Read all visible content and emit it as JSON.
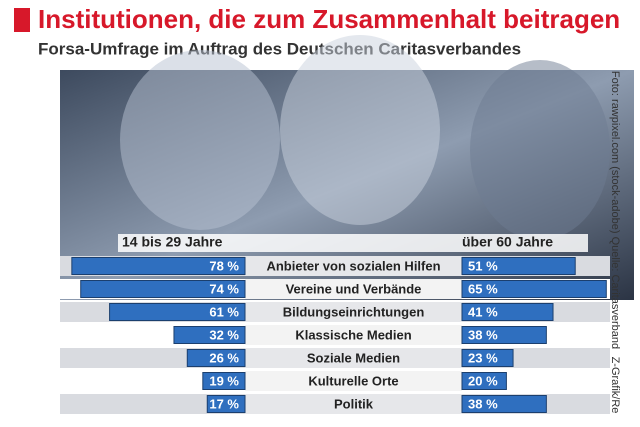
{
  "chart_data": {
    "type": "butterfly",
    "title": "Institutionen, die zum Zusammenhalt beitragen",
    "subtitle": "Forsa-Umfrage im Auftrag des Deutschen Caritasverbandes",
    "credit": "Foto: rawpixel.com (stock-adobe) Quelle: Caritasverband",
    "source": "Z-Grafik/Re",
    "categories": [
      "Anbieter von sozialen Hilfen",
      "Vereine und Verbände",
      "Bildungseinrichtungen",
      "Klassische Medien",
      "Soziale Medien",
      "Kulturelle Orte",
      "Politik"
    ],
    "series": [
      {
        "name": "14 bis 29 Jahre",
        "color": "#2f6fbf",
        "values": [
          78,
          74,
          61,
          32,
          26,
          19,
          17
        ],
        "value_labels": [
          "78 %",
          "74 %",
          "61 %",
          "32 %",
          "26 %",
          "19 %",
          "17 %"
        ]
      },
      {
        "name": "über 60 Jahre",
        "color": "#2f6fbf",
        "values": [
          51,
          65,
          41,
          38,
          23,
          20,
          38
        ],
        "value_labels": [
          "51 %",
          "65 %",
          "41 %",
          "38 %",
          "23 %",
          "20 %",
          "38 %"
        ]
      }
    ]
  }
}
